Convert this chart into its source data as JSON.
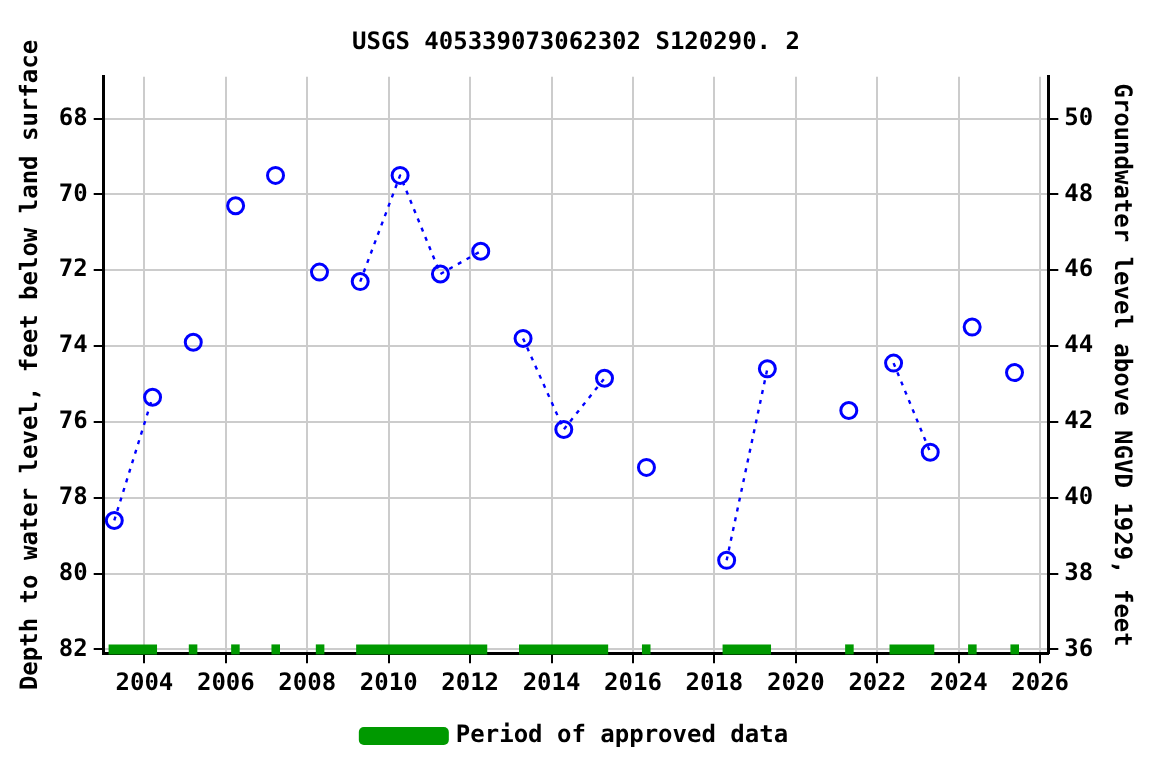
{
  "chart_data": {
    "type": "line",
    "title": "USGS 405339073062302 S120290. 2",
    "ylabel": "Depth to water level, feet below land surface",
    "y2label": "Groundwater level above NGVD 1929, feet",
    "xlim": [
      2003,
      2026.2
    ],
    "xticks": [
      2004,
      2006,
      2008,
      2010,
      2012,
      2014,
      2016,
      2018,
      2020,
      2022,
      2024,
      2026
    ],
    "ylim": [
      82.1,
      66.9
    ],
    "yticks": [
      68,
      70,
      72,
      74,
      76,
      78,
      80,
      82
    ],
    "y2lim": [
      35.9,
      51.1
    ],
    "y2ticks": [
      36,
      38,
      40,
      42,
      44,
      46,
      48,
      50
    ],
    "grid": true,
    "legend": "bottom",
    "series": [
      {
        "color": "#0000ff",
        "marker": "circle",
        "line_style": "dotted",
        "x": [
          2003.26,
          2004.2
        ],
        "values": [
          78.6,
          75.35
        ]
      },
      {
        "color": "#0000ff",
        "marker": "circle",
        "line_style": "dotted",
        "x": [
          2005.2
        ],
        "values": [
          73.9
        ]
      },
      {
        "color": "#0000ff",
        "marker": "circle",
        "line_style": "dotted",
        "x": [
          2006.24
        ],
        "values": [
          70.3
        ]
      },
      {
        "color": "#0000ff",
        "marker": "circle",
        "line_style": "dotted",
        "x": [
          2007.22
        ],
        "values": [
          69.5
        ]
      },
      {
        "color": "#0000ff",
        "marker": "circle",
        "line_style": "dotted",
        "x": [
          2008.3
        ],
        "values": [
          72.05
        ]
      },
      {
        "color": "#0000ff",
        "marker": "circle",
        "line_style": "dotted",
        "x": [
          2009.3,
          2010.28,
          2011.27,
          2012.26
        ],
        "values": [
          72.3,
          69.5,
          72.1,
          71.5
        ]
      },
      {
        "color": "#0000ff",
        "marker": "circle",
        "line_style": "dotted",
        "x": [
          2013.3,
          2014.3,
          2015.3
        ],
        "values": [
          73.8,
          76.2,
          74.85
        ]
      },
      {
        "color": "#0000ff",
        "marker": "circle",
        "line_style": "dotted",
        "x": [
          2016.33
        ],
        "values": [
          77.2
        ]
      },
      {
        "color": "#0000ff",
        "marker": "circle",
        "line_style": "dotted",
        "x": [
          2018.3,
          2019.3
        ],
        "values": [
          79.65,
          74.6
        ]
      },
      {
        "color": "#0000ff",
        "marker": "circle",
        "line_style": "dotted",
        "x": [
          2021.3
        ],
        "values": [
          75.7
        ]
      },
      {
        "color": "#0000ff",
        "marker": "circle",
        "line_style": "dotted",
        "x": [
          2022.4,
          2023.3
        ],
        "values": [
          74.45,
          76.8
        ]
      },
      {
        "color": "#0000ff",
        "marker": "circle",
        "line_style": "dotted",
        "x": [
          2024.33
        ],
        "values": [
          73.5
        ]
      },
      {
        "color": "#0000ff",
        "marker": "circle",
        "line_style": "dotted",
        "x": [
          2025.37
        ],
        "values": [
          74.7
        ]
      },
      {
        "name": "Period of approved data",
        "color": "#009900",
        "marker": "none",
        "line_style": "solid",
        "x": [
          2003.12,
          2004.31
        ],
        "values": [
          82,
          82
        ]
      },
      {
        "color": "#009900",
        "marker": "none",
        "line_style": "solid",
        "x": [
          2005.09,
          2005.3
        ],
        "values": [
          82,
          82
        ]
      },
      {
        "color": "#009900",
        "marker": "none",
        "line_style": "solid",
        "x": [
          2006.13,
          2006.34
        ],
        "values": [
          82,
          82
        ]
      },
      {
        "color": "#009900",
        "marker": "none",
        "line_style": "solid",
        "x": [
          2007.12,
          2007.33
        ],
        "values": [
          82,
          82
        ]
      },
      {
        "color": "#009900",
        "marker": "none",
        "line_style": "solid",
        "x": [
          2008.21,
          2008.42
        ],
        "values": [
          82,
          82
        ]
      },
      {
        "color": "#009900",
        "marker": "none",
        "line_style": "solid",
        "x": [
          2009.2,
          2012.42
        ],
        "values": [
          82,
          82
        ]
      },
      {
        "color": "#009900",
        "marker": "none",
        "line_style": "solid",
        "x": [
          2013.2,
          2015.39
        ],
        "values": [
          82,
          82
        ]
      },
      {
        "color": "#009900",
        "marker": "none",
        "line_style": "solid",
        "x": [
          2016.22,
          2016.43
        ],
        "values": [
          82,
          82
        ]
      },
      {
        "color": "#009900",
        "marker": "none",
        "line_style": "solid",
        "x": [
          2018.2,
          2019.39
        ],
        "values": [
          82,
          82
        ]
      },
      {
        "color": "#009900",
        "marker": "none",
        "line_style": "solid",
        "x": [
          2021.21,
          2021.42
        ],
        "values": [
          82,
          82
        ]
      },
      {
        "color": "#009900",
        "marker": "none",
        "line_style": "solid",
        "x": [
          2022.3,
          2023.4
        ],
        "values": [
          82,
          82
        ]
      },
      {
        "color": "#009900",
        "marker": "none",
        "line_style": "solid",
        "x": [
          2024.23,
          2024.44
        ],
        "values": [
          82,
          82
        ]
      },
      {
        "color": "#009900",
        "marker": "none",
        "line_style": "solid",
        "x": [
          2025.27,
          2025.48
        ],
        "values": [
          82,
          82
        ]
      }
    ]
  }
}
